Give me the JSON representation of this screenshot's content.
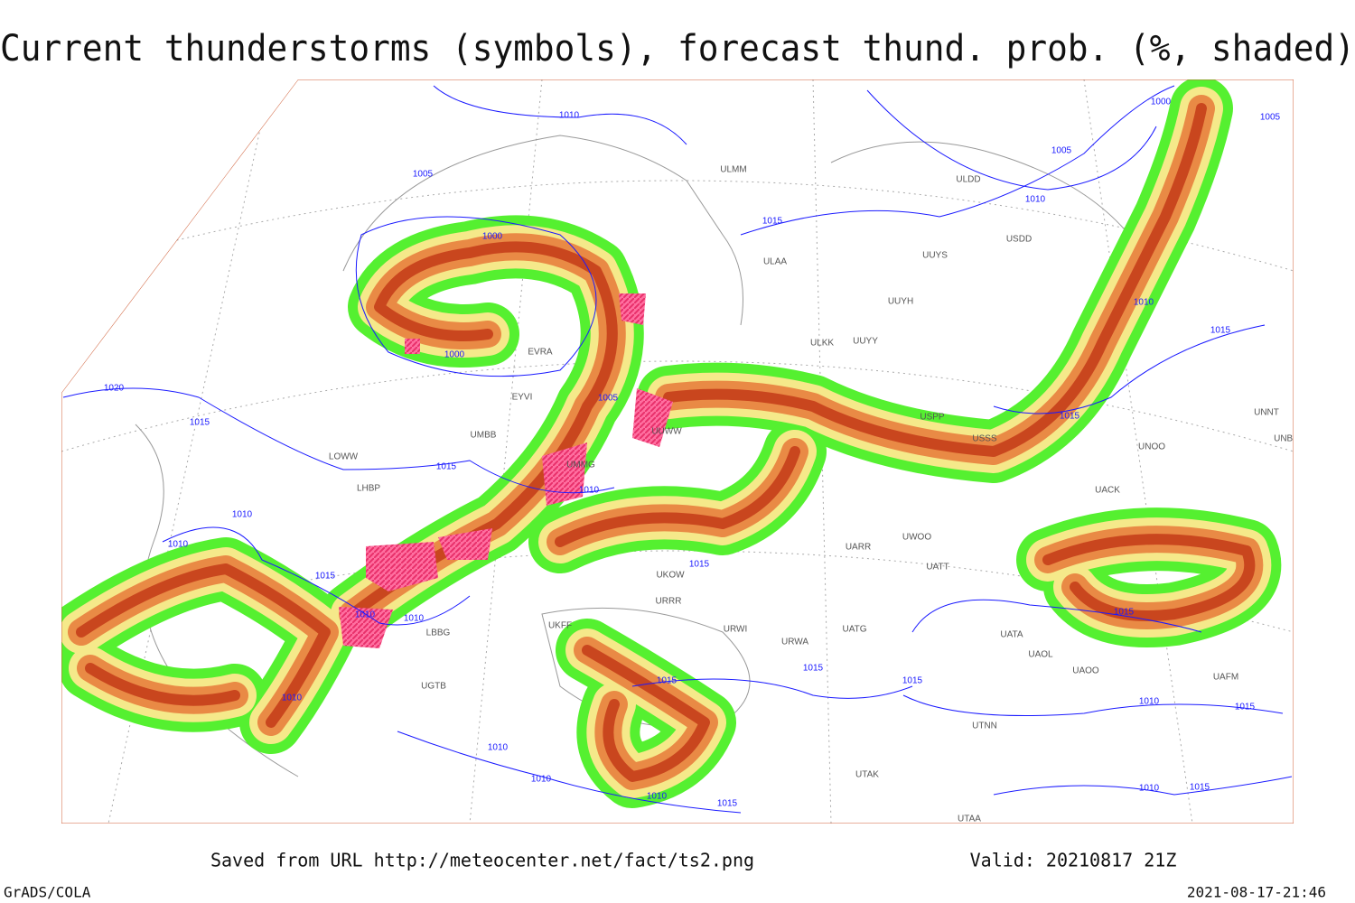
{
  "header": {
    "title": "Current thunderstorms (symbols), forecast thund. prob. (%, shaded)"
  },
  "footer": {
    "source": "Saved from URL http://meteocenter.net/fact/ts2.png",
    "valid": "Valid: 20210817 21Z",
    "software": "GrADS/COLA",
    "timestamp": "2021-08-17-21:46"
  },
  "isobar_labels": [
    "1010",
    "1005",
    "1000",
    "1000",
    "1005",
    "1015",
    "1010",
    "1005",
    "1000",
    "1005",
    "1020",
    "1015",
    "1015",
    "1010",
    "1010",
    "1010",
    "1015",
    "1010",
    "1010",
    "1015",
    "1015",
    "1015",
    "1010",
    "1015",
    "1015",
    "1015",
    "1015",
    "1010",
    "1015",
    "1010",
    "1010",
    "1010",
    "1010",
    "1015",
    "1010",
    "1015"
  ],
  "stations": [
    "ULMM",
    "ULAA",
    "UUYS",
    "UUYH",
    "ULKK",
    "UUYY",
    "EVRA",
    "EYVI",
    "UMMG",
    "UMBB",
    "LOWW",
    "LHBP",
    "UUWW",
    "USPP",
    "USSS",
    "UNOO",
    "UACK",
    "UATT",
    "UARR",
    "UWOO",
    "UATG",
    "URWA",
    "URWI",
    "URRR",
    "UKOW",
    "UKFF",
    "LBBG",
    "UGTB",
    "UTNN",
    "UAOO",
    "UAOL",
    "UATA",
    "UAFM",
    "ULDD",
    "USDD",
    "UNNT",
    "UNBB",
    "UTAA",
    "UTAK"
  ]
}
